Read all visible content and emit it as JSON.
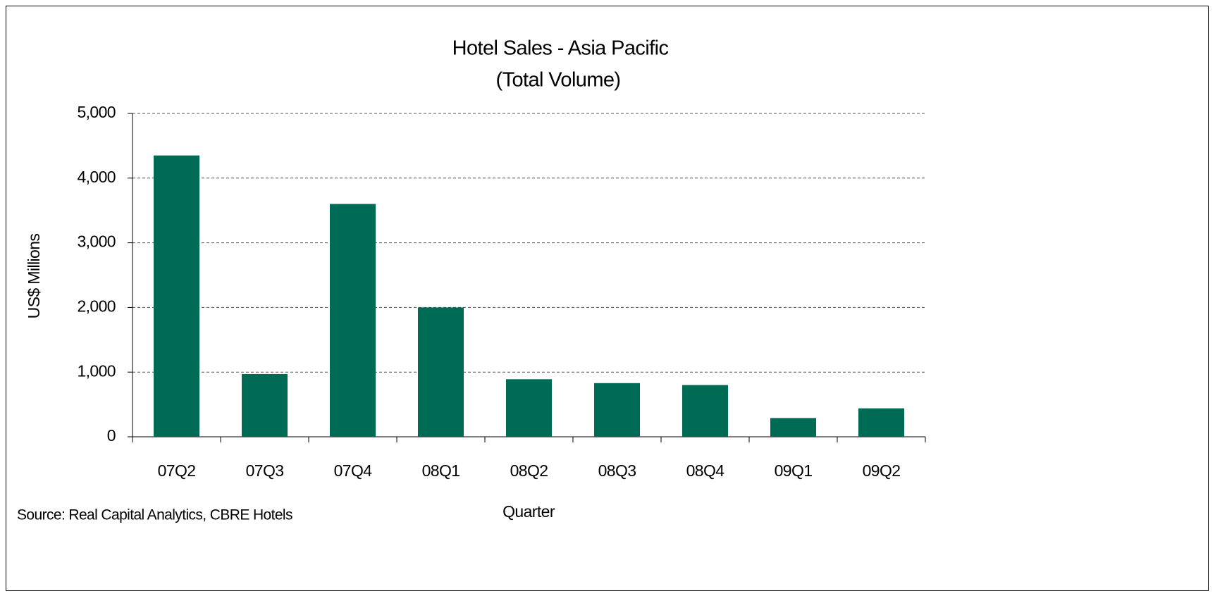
{
  "chart_data": {
    "type": "bar",
    "title": "Hotel Sales - Asia Pacific",
    "subtitle": "(Total Volume)",
    "y_label": "US$ Millions",
    "x_label": "Quarter",
    "annotation": "Source: Real Capital Analytics, CBRE Hotels",
    "categories": [
      "07Q2",
      "07Q3",
      "07Q4",
      "08Q1",
      "08Q2",
      "08Q3",
      "08Q4",
      "09Q1",
      "09Q2"
    ],
    "values": [
      4350,
      970,
      3600,
      2000,
      890,
      830,
      800,
      290,
      440
    ],
    "color": "#006b54",
    "ylim": [
      0,
      5000
    ],
    "yticks": [
      0,
      {
        "value": 1000,
        "label": "1,000"
      },
      {
        "value": 2000,
        "label": "2,000"
      },
      {
        "value": 3000,
        "label": "3,000"
      },
      {
        "value": 4000,
        "label": "4,000"
      },
      {
        "value": 5000,
        "label": "5,000"
      }
    ],
    "grid": true
  }
}
